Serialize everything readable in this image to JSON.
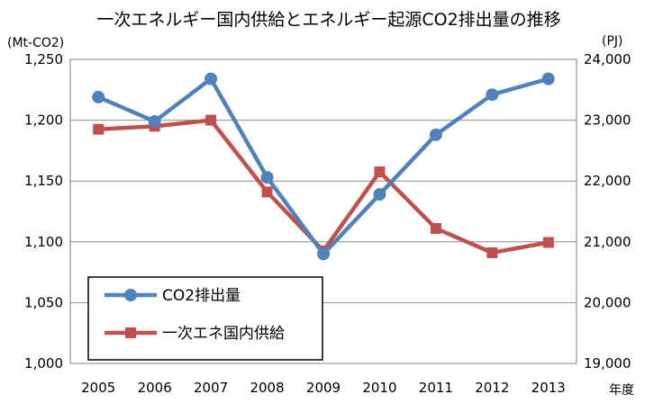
{
  "chart_data": {
    "type": "line",
    "title": "一次エネルギー国内供給とエネルギー起源CO2排出量の推移",
    "ylabel_left": "(Mt-CO2)",
    "ylabel_right": "(PJ)",
    "xlabel": "年度",
    "categories": [
      "2005",
      "2006",
      "2007",
      "2008",
      "2009",
      "2010",
      "2011",
      "2012",
      "2013"
    ],
    "y_left": {
      "range": [
        1000,
        1250
      ],
      "ticks": [
        "1,000",
        "1,050",
        "1,100",
        "1,150",
        "1,200",
        "1,250"
      ]
    },
    "y_right": {
      "range": [
        19000,
        24000
      ],
      "ticks": [
        "19,000",
        "20,000",
        "21,000",
        "22,000",
        "23,000",
        "24,000"
      ]
    },
    "grid": true,
    "legend_position": "bottom-left",
    "series": [
      {
        "name": "CO2排出量",
        "axis": "left",
        "color": "#4f81bd",
        "marker": "circle",
        "values": [
          1219,
          1199,
          1234,
          1153,
          1090,
          1139,
          1188,
          1221,
          1234
        ]
      },
      {
        "name": "一次エネ国内供給",
        "axis": "right",
        "color": "#c0504d",
        "marker": "square",
        "values": [
          22850,
          22900,
          23000,
          21820,
          20850,
          22150,
          21220,
          20820,
          20990
        ]
      }
    ]
  }
}
